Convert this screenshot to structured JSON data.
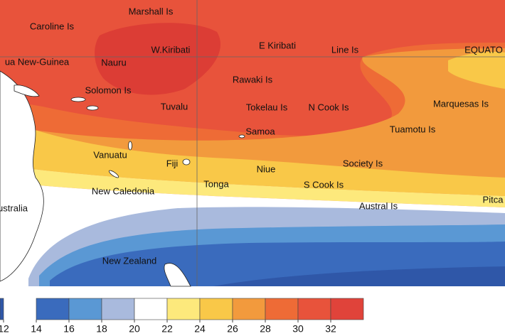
{
  "labels": [
    "Marshall Is",
    "Caroline Is",
    "ua New-Guinea",
    "Nauru",
    "W.Kiribati",
    "E Kiribati",
    "Line Is",
    "EQUATO",
    "Rawaki Is",
    "Solomon Is",
    "Tuvalu",
    "Tokelau Is",
    "N Cook Is",
    "Marquesas Is",
    "Samoa",
    "Tuamotu Is",
    "Vanuatu",
    "Fiji",
    "Niue",
    "Society Is",
    "Tonga",
    "S Cook Is",
    "New Caledonia",
    "Pitca",
    "ustralia",
    "Austral Is",
    "New Zealand"
  ],
  "colorbar": {
    "ticks": [
      12,
      14,
      16,
      18,
      20,
      22,
      24,
      26,
      28,
      30,
      32
    ],
    "colors": [
      "#2f57a8",
      "#3a6bbd",
      "#5a98d4",
      "#a9badd",
      "#ffffff",
      "#fde97c",
      "#f9c848",
      "#f29a3d",
      "#ee6b36",
      "#e8533b",
      "#e0433a"
    ]
  }
}
